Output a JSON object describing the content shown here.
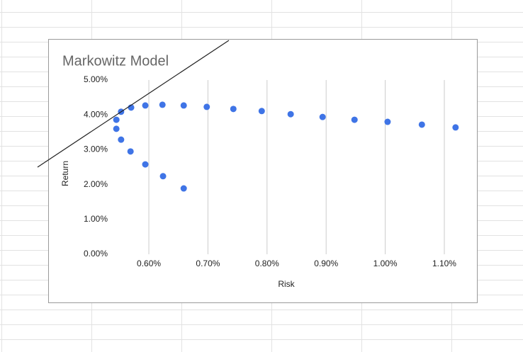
{
  "chart_data": {
    "type": "scatter",
    "title": "Markowitz Model",
    "x_label": "Risk",
    "y_label": "Return",
    "series": [
      {
        "color": "#3f74e6",
        "x": [
          0.545,
          0.553,
          0.57,
          0.594,
          0.623,
          0.659,
          0.698,
          0.743,
          0.791,
          0.84,
          0.894,
          0.948,
          1.004,
          1.062,
          1.119,
          0.545,
          0.553,
          0.569,
          0.594,
          0.624,
          0.659
        ],
        "values": [
          3.86,
          4.09,
          4.21,
          4.27,
          4.29,
          4.27,
          4.23,
          4.17,
          4.11,
          4.02,
          3.94,
          3.86,
          3.8,
          3.72,
          3.64,
          3.6,
          3.29,
          2.95,
          2.58,
          2.24,
          1.89
        ]
      }
    ],
    "xlim": [
      0.54,
      1.13
    ],
    "xticks": [
      {
        "value": 0.6,
        "label": "0.60%"
      },
      {
        "value": 0.7,
        "label": "0.70%"
      },
      {
        "value": 0.8,
        "label": "0.80%"
      },
      {
        "value": 0.9,
        "label": "0.90%"
      },
      {
        "value": 1.0,
        "label": "1.00%"
      },
      {
        "value": 1.1,
        "label": "1.10%"
      }
    ],
    "ylim": [
      0,
      5
    ],
    "yticks": [
      {
        "value": 0,
        "label": "0.00%"
      },
      {
        "value": 1,
        "label": "1.00%"
      },
      {
        "value": 2,
        "label": "2.00%"
      },
      {
        "value": 3,
        "label": "3.00%"
      },
      {
        "value": 4,
        "label": "4.00%"
      },
      {
        "value": 5,
        "label": "5.00%"
      }
    ],
    "grid": "x"
  }
}
